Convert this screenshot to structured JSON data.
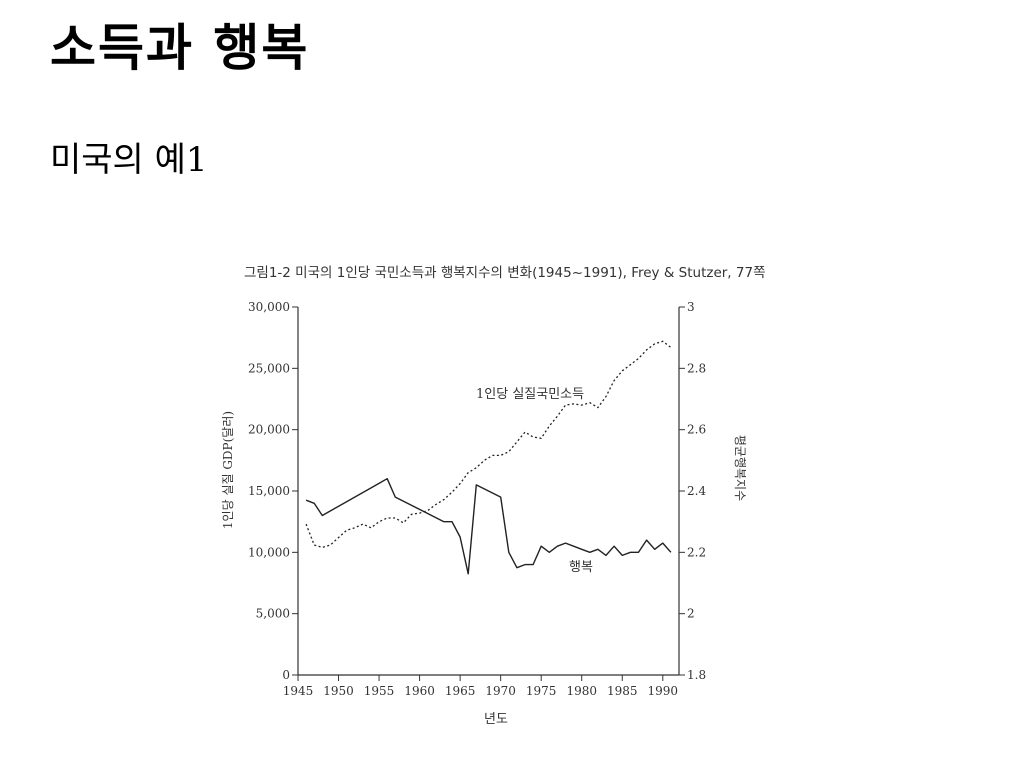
{
  "slide": {
    "title": "소득과 행복",
    "subtitle": "미국의 예1"
  },
  "chart_data": {
    "type": "line",
    "title": "그림1-2 미국의 1인당 국민소득과 행복지수의 변화(1945~1991), Frey & Stutzer, 77쪽",
    "xlabel": "년도",
    "ylabel_left": "1인당 실질 GDP(달러)",
    "ylabel_right": "평균행복지수",
    "xlim": [
      1945,
      1992
    ],
    "x_ticks": [
      1945,
      1950,
      1955,
      1960,
      1965,
      1970,
      1975,
      1980,
      1985,
      1990
    ],
    "y_left": {
      "lim": [
        0,
        30000
      ],
      "ticks": [
        0,
        5000,
        10000,
        15000,
        20000,
        25000,
        30000
      ],
      "tick_labels": [
        "0",
        "5,000",
        "10,000",
        "15,000",
        "20,000",
        "25,000",
        "30,000"
      ]
    },
    "y_right": {
      "lim": [
        1.8,
        3
      ],
      "ticks": [
        1.8,
        2,
        2.2,
        2.4,
        2.6,
        2.8,
        3
      ],
      "tick_labels": [
        "1.8",
        "2",
        "2.2",
        "2.4",
        "2.6",
        "2.8",
        "3"
      ]
    },
    "series": [
      {
        "name": "1인당 실질국민소득",
        "axis": "left",
        "style": "dotted",
        "x": [
          1946,
          1947,
          1948,
          1949,
          1950,
          1951,
          1952,
          1953,
          1954,
          1955,
          1956,
          1957,
          1958,
          1959,
          1960,
          1961,
          1962,
          1963,
          1964,
          1965,
          1966,
          1967,
          1968,
          1969,
          1970,
          1971,
          1972,
          1973,
          1974,
          1975,
          1976,
          1977,
          1978,
          1979,
          1980,
          1981,
          1982,
          1983,
          1984,
          1985,
          1986,
          1987,
          1988,
          1989,
          1990,
          1991
        ],
        "values": [
          12300,
          10600,
          10400,
          10600,
          11200,
          11800,
          12000,
          12300,
          12000,
          12500,
          12800,
          12800,
          12400,
          13100,
          13200,
          13400,
          13900,
          14300,
          14900,
          15600,
          16500,
          16900,
          17500,
          17900,
          17900,
          18200,
          19000,
          19800,
          19400,
          19300,
          20300,
          21100,
          22000,
          22100,
          22000,
          22200,
          21800,
          22700,
          24000,
          24800,
          25300,
          25800,
          26500,
          27000,
          27200,
          26700
        ]
      },
      {
        "name": "행복",
        "axis": "right",
        "style": "solid",
        "x": [
          1946,
          1947,
          1948,
          1956,
          1957,
          1963,
          1964,
          1965,
          1966,
          1967,
          1970,
          1971,
          1972,
          1973,
          1974,
          1975,
          1976,
          1977,
          1978,
          1979,
          1980,
          1981,
          1982,
          1983,
          1984,
          1985,
          1986,
          1987,
          1988,
          1989,
          1990,
          1991
        ],
        "values": [
          2.37,
          2.36,
          2.32,
          2.44,
          2.38,
          2.3,
          2.3,
          2.25,
          2.13,
          2.42,
          2.38,
          2.2,
          2.15,
          2.16,
          2.16,
          2.22,
          2.2,
          2.22,
          2.23,
          2.22,
          2.21,
          2.2,
          2.21,
          2.19,
          2.22,
          2.19,
          2.2,
          2.2,
          2.24,
          2.21,
          2.23,
          2.2
        ]
      }
    ]
  }
}
